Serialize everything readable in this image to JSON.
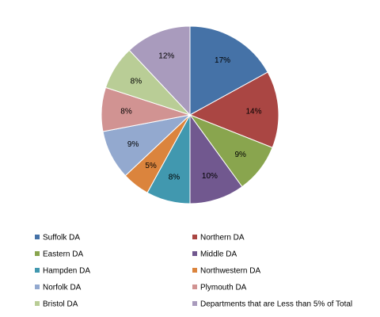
{
  "chart_data": {
    "type": "pie",
    "categories": [
      "Suffolk DA",
      "Northern DA",
      "Eastern DA",
      "Middle DA",
      "Hampden DA",
      "Northwestern DA",
      "Norfolk DA",
      "Plymouth DA",
      "Bristol DA",
      "Departments that are Less than 5% of Total"
    ],
    "values": [
      17,
      14,
      9,
      10,
      8,
      5,
      9,
      8,
      8,
      12
    ],
    "value_labels": [
      "17%",
      "14%",
      "9%",
      "10%",
      "8%",
      "5%",
      "9%",
      "8%",
      "8%",
      "12%"
    ],
    "colors": [
      "#4572A7",
      "#AA4643",
      "#89A54E",
      "#71588F",
      "#4198AF",
      "#DB843D",
      "#93A9CF",
      "#D19392",
      "#B9CD96",
      "#A99BBD"
    ],
    "start": "12 o'clock",
    "direction": "clockwise",
    "legend_position": "bottom",
    "title": ""
  }
}
